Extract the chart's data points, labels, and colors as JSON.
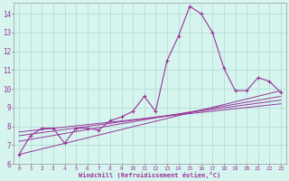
{
  "title": "",
  "xlabel": "Windchill (Refroidissement éolien,°C)",
  "background_color": "#d6f5ef",
  "line_color": "#993399",
  "xlim": [
    -0.5,
    23.5
  ],
  "ylim": [
    6,
    14.6
  ],
  "xticks": [
    0,
    1,
    2,
    3,
    4,
    5,
    6,
    7,
    8,
    9,
    10,
    11,
    12,
    13,
    14,
    15,
    16,
    17,
    18,
    19,
    20,
    21,
    22,
    23
  ],
  "yticks": [
    6,
    7,
    8,
    9,
    10,
    11,
    12,
    13,
    14
  ],
  "series": [
    [
      0,
      6.5
    ],
    [
      1,
      7.5
    ],
    [
      2,
      7.9
    ],
    [
      3,
      7.9
    ],
    [
      4,
      7.1
    ],
    [
      5,
      7.9
    ],
    [
      6,
      7.9
    ],
    [
      7,
      7.8
    ],
    [
      8,
      8.3
    ],
    [
      9,
      8.5
    ],
    [
      10,
      8.8
    ],
    [
      11,
      9.6
    ],
    [
      12,
      8.8
    ],
    [
      13,
      11.5
    ],
    [
      14,
      12.8
    ],
    [
      15,
      14.4
    ],
    [
      16,
      14.0
    ],
    [
      17,
      13.0
    ],
    [
      18,
      11.1
    ],
    [
      19,
      9.9
    ],
    [
      20,
      9.9
    ],
    [
      21,
      10.6
    ],
    [
      22,
      10.4
    ],
    [
      23,
      9.8
    ]
  ],
  "regression_lines": [
    {
      "x": [
        0,
        23
      ],
      "y": [
        6.5,
        9.9
      ]
    },
    {
      "x": [
        0,
        23
      ],
      "y": [
        7.2,
        9.6
      ]
    },
    {
      "x": [
        0,
        23
      ],
      "y": [
        7.5,
        9.4
      ]
    },
    {
      "x": [
        0,
        23
      ],
      "y": [
        7.7,
        9.2
      ]
    }
  ],
  "grid_color": "#b0d8d0",
  "spine_color": "#999999"
}
